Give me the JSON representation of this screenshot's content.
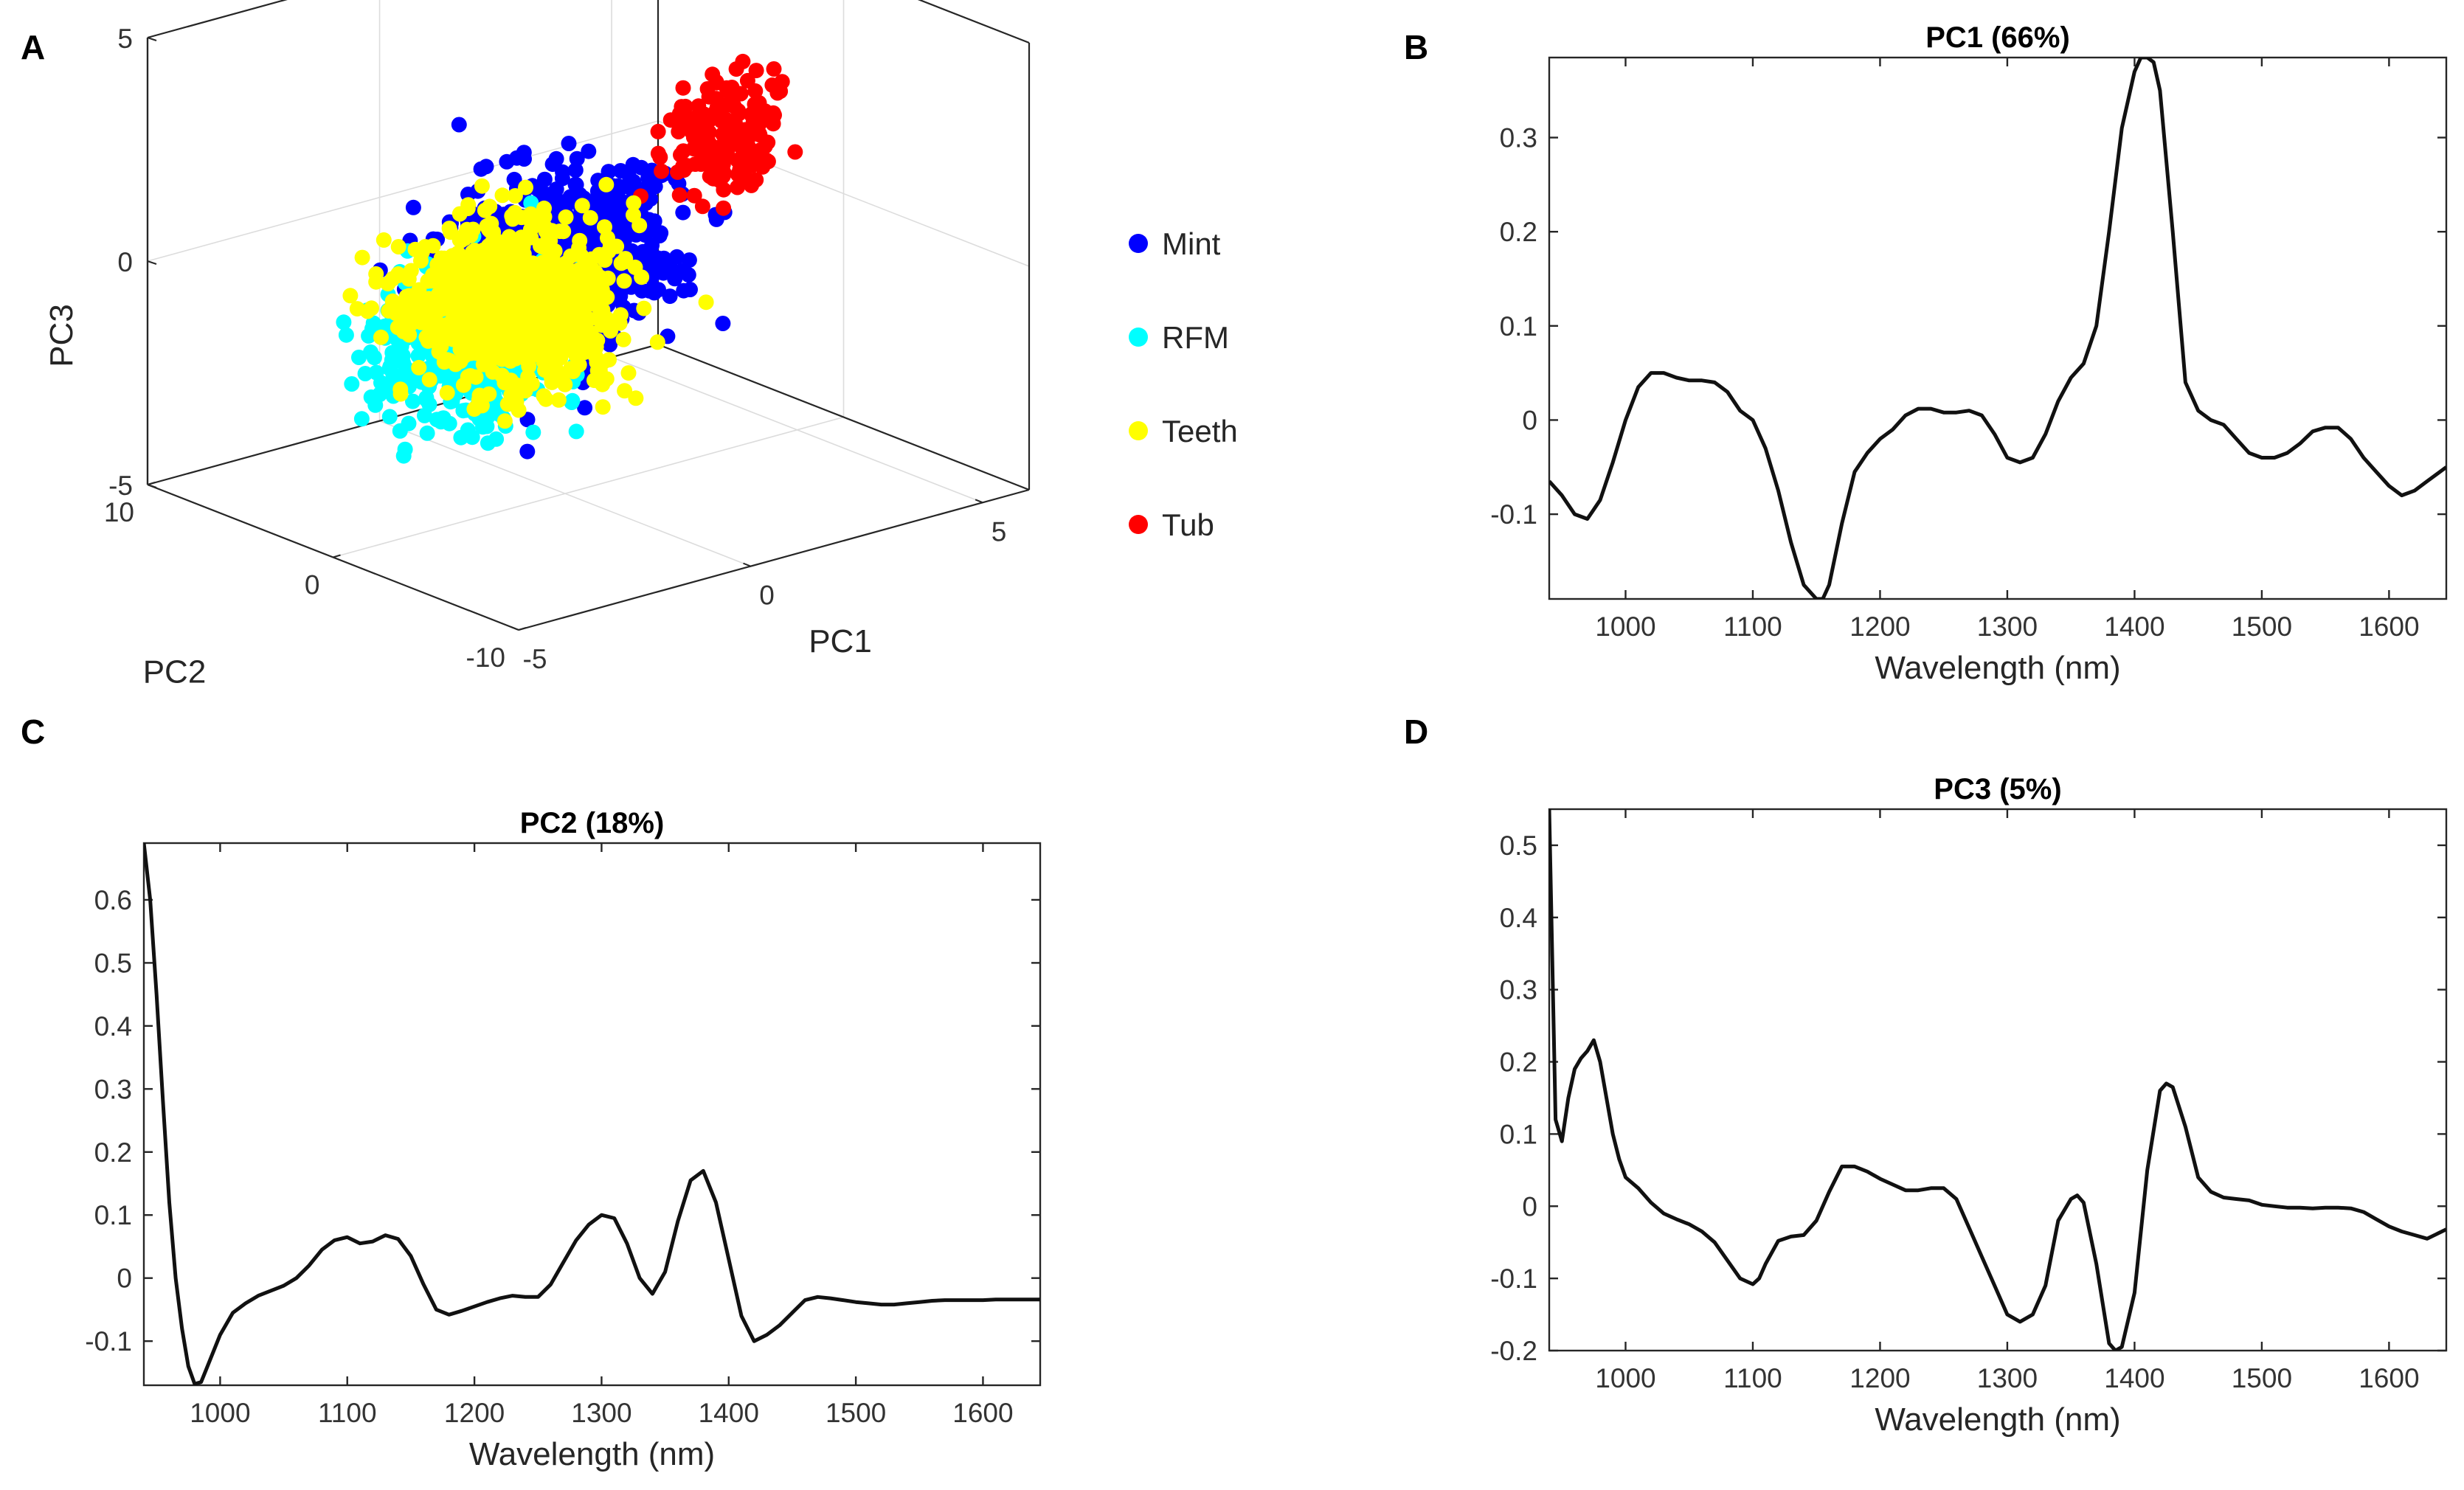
{
  "panels": {
    "A": "A",
    "B": "B",
    "C": "C",
    "D": "D"
  },
  "chart_data": [
    {
      "type": "scatter",
      "panel": "A",
      "view": "3d",
      "xlabel": "PC1",
      "ylabel": "PC2",
      "zlabel": "PC3",
      "xlim": [
        -5,
        6
      ],
      "ylim": [
        -10,
        10
      ],
      "zlim": [
        -5,
        5
      ],
      "xticks": [
        -5,
        0,
        5
      ],
      "yticks": [
        -10,
        0,
        10
      ],
      "zticks": [
        -5,
        0,
        5
      ],
      "legend_position": "right",
      "series": [
        {
          "name": "Mint",
          "color": "#0000ff",
          "center": [
            0.2,
            0.5,
            0.2
          ],
          "spread": [
            1.8,
            2.5,
            1.4
          ]
        },
        {
          "name": "RFM",
          "color": "#00ffff",
          "center": [
            -2.2,
            -0.4,
            -1.0
          ],
          "spread": [
            1.5,
            2.3,
            1.3
          ]
        },
        {
          "name": "Teeth",
          "color": "#ffff00",
          "center": [
            -1.5,
            -0.8,
            -0.2
          ],
          "spread": [
            1.6,
            2.6,
            1.3
          ]
        },
        {
          "name": "Tub",
          "color": "#ff0000",
          "center": [
            4.1,
            1.9,
            1.5
          ],
          "spread": [
            0.9,
            1.4,
            1.1
          ]
        }
      ]
    },
    {
      "type": "line",
      "panel": "B",
      "title": "PC1 (66%)",
      "xlabel": "Wavelength (nm)",
      "xlim": [
        940,
        1645
      ],
      "ylim": [
        -0.19,
        0.385
      ],
      "xticks": [
        1000,
        1100,
        1200,
        1300,
        1400,
        1500,
        1600
      ],
      "yticks": [
        -0.1,
        0,
        0.1,
        0.2,
        0.3
      ],
      "x": [
        940,
        950,
        960,
        970,
        980,
        990,
        1000,
        1010,
        1020,
        1030,
        1040,
        1050,
        1060,
        1070,
        1080,
        1090,
        1100,
        1110,
        1120,
        1130,
        1140,
        1150,
        1155,
        1160,
        1170,
        1180,
        1190,
        1200,
        1210,
        1220,
        1230,
        1240,
        1250,
        1260,
        1270,
        1280,
        1290,
        1300,
        1310,
        1320,
        1330,
        1340,
        1350,
        1360,
        1370,
        1380,
        1390,
        1400,
        1405,
        1410,
        1415,
        1420,
        1430,
        1440,
        1450,
        1460,
        1470,
        1480,
        1490,
        1500,
        1510,
        1520,
        1530,
        1540,
        1550,
        1560,
        1570,
        1580,
        1590,
        1600,
        1610,
        1620,
        1630,
        1645
      ],
      "values": [
        -0.065,
        -0.08,
        -0.1,
        -0.105,
        -0.085,
        -0.045,
        0.0,
        0.035,
        0.05,
        0.05,
        0.045,
        0.042,
        0.042,
        0.04,
        0.03,
        0.01,
        0.0,
        -0.03,
        -0.075,
        -0.13,
        -0.175,
        -0.19,
        -0.19,
        -0.175,
        -0.11,
        -0.055,
        -0.035,
        -0.02,
        -0.01,
        0.005,
        0.012,
        0.012,
        0.008,
        0.008,
        0.01,
        0.005,
        -0.015,
        -0.04,
        -0.045,
        -0.04,
        -0.015,
        0.02,
        0.045,
        0.06,
        0.1,
        0.2,
        0.31,
        0.37,
        0.385,
        0.385,
        0.38,
        0.35,
        0.2,
        0.04,
        0.01,
        0.0,
        -0.005,
        -0.02,
        -0.035,
        -0.04,
        -0.04,
        -0.035,
        -0.025,
        -0.012,
        -0.008,
        -0.008,
        -0.02,
        -0.04,
        -0.055,
        -0.07,
        -0.08,
        -0.075,
        -0.065,
        -0.05
      ]
    },
    {
      "type": "line",
      "panel": "C",
      "title": "PC2 (18%)",
      "xlabel": "Wavelength (nm)",
      "xlim": [
        940,
        1645
      ],
      "ylim": [
        -0.17,
        0.69
      ],
      "xticks": [
        1000,
        1100,
        1200,
        1300,
        1400,
        1500,
        1600
      ],
      "yticks": [
        -0.1,
        0,
        0.1,
        0.2,
        0.3,
        0.4,
        0.5,
        0.6
      ],
      "x": [
        940,
        945,
        950,
        955,
        960,
        965,
        970,
        975,
        980,
        985,
        990,
        1000,
        1010,
        1020,
        1030,
        1040,
        1050,
        1060,
        1070,
        1080,
        1090,
        1100,
        1110,
        1120,
        1130,
        1140,
        1150,
        1160,
        1170,
        1180,
        1190,
        1200,
        1210,
        1220,
        1230,
        1240,
        1250,
        1260,
        1270,
        1280,
        1290,
        1300,
        1310,
        1320,
        1330,
        1340,
        1350,
        1360,
        1370,
        1380,
        1390,
        1400,
        1410,
        1420,
        1430,
        1440,
        1450,
        1460,
        1470,
        1480,
        1490,
        1500,
        1510,
        1520,
        1530,
        1540,
        1550,
        1560,
        1570,
        1580,
        1590,
        1600,
        1610,
        1620,
        1630,
        1645
      ],
      "values": [
        0.69,
        0.6,
        0.45,
        0.28,
        0.12,
        0.0,
        -0.08,
        -0.14,
        -0.168,
        -0.165,
        -0.14,
        -0.09,
        -0.055,
        -0.04,
        -0.028,
        -0.02,
        -0.012,
        0.0,
        0.02,
        0.045,
        0.06,
        0.065,
        0.055,
        0.058,
        0.068,
        0.062,
        0.035,
        -0.01,
        -0.05,
        -0.058,
        -0.052,
        -0.045,
        -0.038,
        -0.032,
        -0.028,
        -0.03,
        -0.03,
        -0.01,
        0.025,
        0.06,
        0.085,
        0.1,
        0.095,
        0.055,
        0.0,
        -0.025,
        0.01,
        0.09,
        0.155,
        0.17,
        0.12,
        0.03,
        -0.06,
        -0.1,
        -0.09,
        -0.075,
        -0.055,
        -0.035,
        -0.03,
        -0.032,
        -0.035,
        -0.038,
        -0.04,
        -0.042,
        -0.042,
        -0.04,
        -0.038,
        -0.036,
        -0.035,
        -0.035,
        -0.035,
        -0.035,
        -0.034,
        -0.034,
        -0.034,
        -0.034
      ]
    },
    {
      "type": "line",
      "panel": "D",
      "title": "PC3 (5%)",
      "xlabel": "Wavelength (nm)",
      "xlim": [
        940,
        1645
      ],
      "ylim": [
        -0.2,
        0.55
      ],
      "xticks": [
        1000,
        1100,
        1200,
        1300,
        1400,
        1500,
        1600
      ],
      "yticks": [
        -0.2,
        -0.1,
        0,
        0.1,
        0.2,
        0.3,
        0.4,
        0.5
      ],
      "x": [
        940,
        945,
        950,
        955,
        960,
        965,
        970,
        975,
        980,
        985,
        990,
        995,
        1000,
        1010,
        1020,
        1030,
        1040,
        1050,
        1060,
        1070,
        1080,
        1090,
        1100,
        1105,
        1110,
        1120,
        1130,
        1140,
        1150,
        1160,
        1170,
        1180,
        1190,
        1200,
        1210,
        1220,
        1230,
        1240,
        1250,
        1260,
        1270,
        1280,
        1290,
        1300,
        1310,
        1320,
        1330,
        1340,
        1350,
        1355,
        1360,
        1370,
        1380,
        1385,
        1390,
        1400,
        1410,
        1420,
        1425,
        1430,
        1440,
        1450,
        1460,
        1470,
        1480,
        1490,
        1500,
        1510,
        1520,
        1530,
        1540,
        1550,
        1560,
        1570,
        1580,
        1590,
        1600,
        1610,
        1620,
        1630,
        1645
      ],
      "values": [
        0.55,
        0.12,
        0.09,
        0.15,
        0.19,
        0.205,
        0.215,
        0.23,
        0.2,
        0.15,
        0.1,
        0.065,
        0.04,
        0.025,
        0.005,
        -0.01,
        -0.018,
        -0.025,
        -0.035,
        -0.05,
        -0.075,
        -0.1,
        -0.108,
        -0.1,
        -0.08,
        -0.048,
        -0.042,
        -0.04,
        -0.02,
        0.02,
        0.055,
        0.055,
        0.048,
        0.038,
        0.03,
        0.022,
        0.022,
        0.025,
        0.025,
        0.01,
        -0.03,
        -0.07,
        -0.11,
        -0.15,
        -0.16,
        -0.15,
        -0.11,
        -0.02,
        0.01,
        0.015,
        0.005,
        -0.08,
        -0.19,
        -0.2,
        -0.195,
        -0.12,
        0.05,
        0.16,
        0.17,
        0.165,
        0.11,
        0.04,
        0.02,
        0.012,
        0.01,
        0.008,
        0.002,
        0.0,
        -0.002,
        -0.002,
        -0.003,
        -0.002,
        -0.002,
        -0.003,
        -0.008,
        -0.018,
        -0.028,
        -0.035,
        -0.04,
        -0.045,
        -0.032
      ]
    }
  ]
}
